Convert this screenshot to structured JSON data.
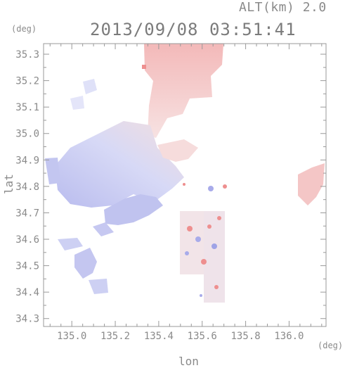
{
  "header": {
    "altitude_label": "ALT(km) 2.0",
    "timestamp": "2013/09/08 03:51:41"
  },
  "axes": {
    "y_unit": "(deg)",
    "x_unit": "(deg)",
    "x_label": "lon",
    "y_label": "lat",
    "x_ticks": [
      "135.0",
      "135.2",
      "135.4",
      "135.6",
      "135.8",
      "136.0"
    ],
    "y_ticks": [
      "35.3",
      "35.2",
      "35.1",
      "35.0",
      "34.9",
      "34.8",
      "34.7",
      "34.6",
      "34.5",
      "34.4",
      "34.3"
    ]
  },
  "colors": {
    "approaching": "#c7c9f2",
    "approaching_strong": "#a8abea",
    "receding": "#f6c9c9",
    "receding_strong": "#ee8f8f",
    "frame": "#999999"
  },
  "chart_data": {
    "type": "heatmap",
    "xlabel": "lon",
    "ylabel": "lat",
    "xlim": [
      134.87,
      136.17
    ],
    "ylim": [
      34.27,
      35.34
    ]
  }
}
